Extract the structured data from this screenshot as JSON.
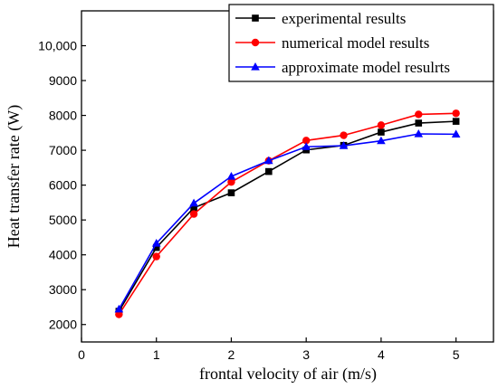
{
  "chart_data": {
    "type": "line",
    "xlabel": "frontal velocity of air (m/s)",
    "ylabel": "Heat transfer rate (W)",
    "xlim": [
      0,
      5.5
    ],
    "ylim": [
      1500,
      11000
    ],
    "xticks": [
      0,
      1,
      2,
      3,
      4,
      5
    ],
    "xtick_labels": [
      "0",
      "1",
      "2",
      "3",
      "4",
      "5"
    ],
    "yticks": [
      2000,
      3000,
      4000,
      5000,
      6000,
      7000,
      8000,
      9000,
      10000
    ],
    "ytick_labels": [
      "2000",
      "3000",
      "4000",
      "5000",
      "6000",
      "7000",
      "8000",
      "9000",
      "10,000"
    ],
    "grid": false,
    "legend_position": "top-right",
    "x": [
      0.5,
      1.0,
      1.5,
      2.0,
      2.5,
      3.0,
      3.5,
      4.0,
      4.5,
      5.0
    ],
    "series": [
      {
        "name": "experimental results",
        "color": "#000000",
        "marker": "square",
        "values": [
          2380,
          4210,
          5350,
          5780,
          6390,
          7010,
          7140,
          7520,
          7780,
          7830
        ]
      },
      {
        "name": "numerical model results",
        "color": "#ff0000",
        "marker": "circle",
        "values": [
          2290,
          3950,
          5170,
          6090,
          6700,
          7280,
          7430,
          7720,
          8030,
          8060
        ]
      },
      {
        "name": "approximate model resulrts",
        "color": "#0000ff",
        "marker": "triangle",
        "values": [
          2440,
          4330,
          5480,
          6250,
          6700,
          7100,
          7130,
          7270,
          7470,
          7460
        ]
      }
    ]
  }
}
